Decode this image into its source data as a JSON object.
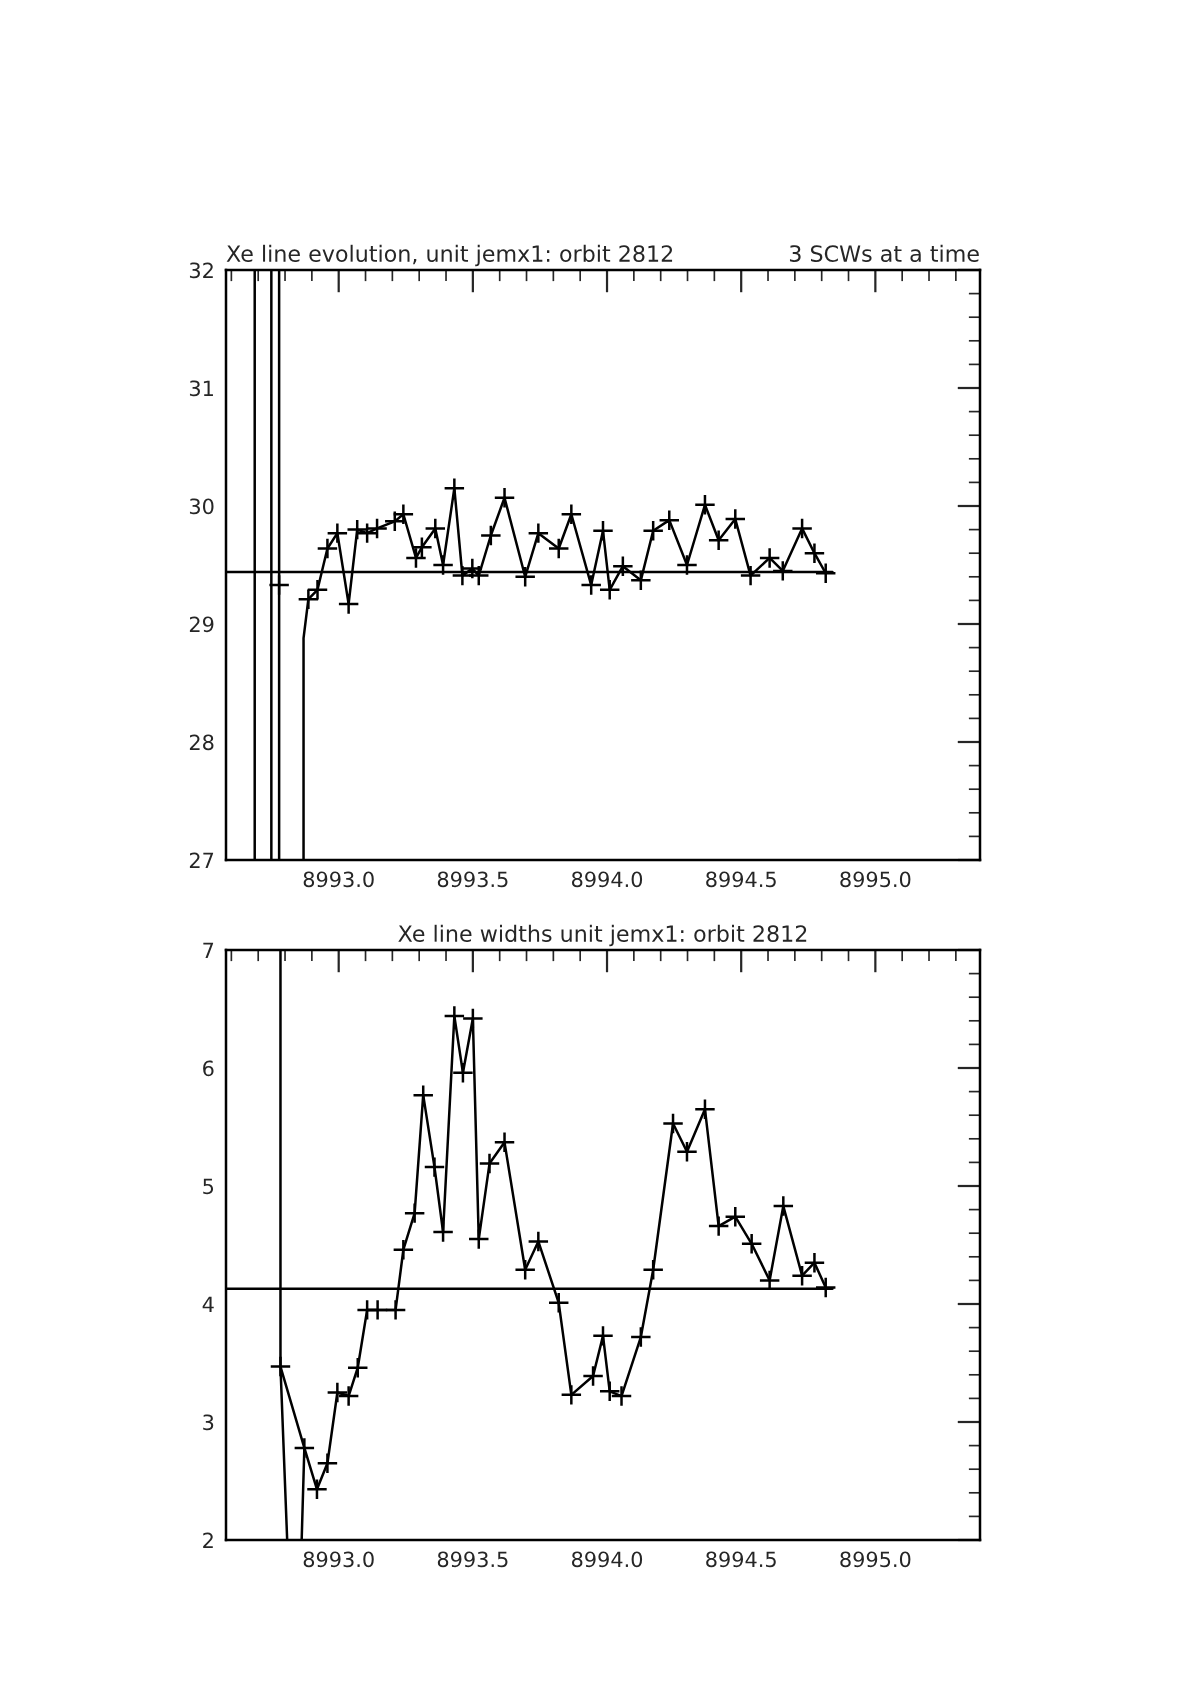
{
  "chart_data": [
    {
      "type": "line",
      "title": "Xe line evolution, unit jemx1: orbit 2812",
      "subtitle": "3 SCWs at a time",
      "xlim": [
        8992.58,
        8995.39
      ],
      "ylim": [
        27,
        32
      ],
      "xticks": [
        {
          "value": 8993,
          "label": "8993.0"
        },
        {
          "value": 8993.5,
          "label": "8993.5"
        },
        {
          "value": 8994,
          "label": "8994.0"
        },
        {
          "value": 8994.5,
          "label": "8994.5"
        },
        {
          "value": 8995,
          "label": "8995.0"
        }
      ],
      "yticks": [
        27,
        28,
        29,
        30,
        31,
        32
      ],
      "grid": false,
      "legend": false,
      "series": [
        {
          "color": "#000000",
          "marker": "cross",
          "x": [
            8992.778,
            8992.869,
            8992.887,
            8992.921,
            8992.958,
            8992.995,
            8993.037,
            8993.069,
            8993.106,
            8993.143,
            8993.209,
            8993.241,
            8993.288,
            8993.31,
            8993.36,
            8993.389,
            8993.431,
            8993.461,
            8993.498,
            8993.522,
            8993.567,
            8993.618,
            8993.695,
            8993.744,
            8993.82,
            8993.867,
            8993.941,
            8993.985,
            8994.01,
            8994.059,
            8994.126,
            8994.172,
            8994.232,
            8994.298,
            8994.365,
            8994.416,
            8994.478,
            8994.535,
            8994.606,
            8994.655,
            8994.727,
            8994.773,
            8994.815
          ],
          "values": [
            29.33,
            null,
            29.21,
            29.29,
            29.64,
            29.77,
            29.17,
            29.8,
            29.77,
            29.81,
            29.87,
            29.93,
            29.56,
            29.65,
            29.81,
            29.5,
            30.15,
            29.41,
            29.47,
            29.41,
            29.75,
            30.07,
            29.4,
            29.77,
            29.64,
            29.93,
            29.33,
            29.79,
            29.29,
            29.49,
            29.37,
            29.79,
            29.88,
            29.5,
            30.01,
            29.71,
            29.89,
            29.41,
            29.56,
            29.45,
            29.81,
            29.6,
            29.43
          ]
        },
        {
          "color": "#000000",
          "marker": "none",
          "x": [
            8992.869,
            8992.869,
            8992.887
          ],
          "values": [
            27,
            28.88,
            29.21
          ]
        },
        {
          "color": "#000000",
          "marker": "none",
          "x": [
            8992.687,
            8992.687
          ],
          "values": [
            27,
            32
          ]
        },
        {
          "color": "#000000",
          "marker": "none",
          "x": [
            8992.749,
            8992.749
          ],
          "values": [
            27,
            32
          ]
        },
        {
          "color": "#000000",
          "marker": "none",
          "x": [
            8992.778,
            8992.778
          ],
          "values": [
            27,
            32
          ]
        },
        {
          "color": "#000000",
          "marker": "none",
          "x": [
            8992.58,
            8994.84
          ],
          "values": [
            29.44,
            29.44
          ]
        }
      ]
    },
    {
      "type": "line",
      "title": "Xe line widths unit jemx1: orbit 2812",
      "xlim": [
        8992.58,
        8995.39
      ],
      "ylim": [
        2,
        7
      ],
      "xticks": [
        {
          "value": 8993,
          "label": "8993.0"
        },
        {
          "value": 8993.5,
          "label": "8993.5"
        },
        {
          "value": 8994,
          "label": "8994.0"
        },
        {
          "value": 8994.5,
          "label": "8994.5"
        },
        {
          "value": 8995,
          "label": "8995.0"
        }
      ],
      "yticks": [
        2,
        3,
        4,
        5,
        6,
        7
      ],
      "grid": false,
      "legend": false,
      "series": [
        {
          "color": "#000000",
          "marker": "cross",
          "x": [
            8992.783,
            8992.872,
            8992.919,
            8992.958,
            8992.995,
            8993.037,
            8993.071,
            8993.106,
            8993.145,
            8993.212,
            8993.241,
            8993.283,
            8993.315,
            8993.357,
            8993.389,
            8993.431,
            8993.463,
            8993.5,
            8993.522,
            8993.562,
            8993.618,
            8993.695,
            8993.744,
            8993.82,
            8993.867,
            8993.948,
            8993.985,
            8994.01,
            8994.054,
            8994.126,
            8994.172,
            8994.246,
            8994.298,
            8994.365,
            8994.416,
            8994.478,
            8994.539,
            8994.606,
            8994.657,
            8994.727,
            8994.773,
            8994.815
          ],
          "values": [
            3.47,
            2.78,
            2.43,
            2.65,
            3.25,
            3.22,
            3.46,
            3.95,
            3.95,
            3.95,
            4.46,
            4.77,
            5.77,
            5.16,
            4.61,
            6.44,
            5.96,
            6.42,
            4.55,
            5.19,
            5.37,
            4.29,
            4.53,
            4.01,
            3.23,
            3.39,
            3.73,
            3.26,
            3.22,
            3.72,
            4.29,
            5.53,
            5.29,
            5.65,
            4.66,
            4.74,
            4.51,
            4.2,
            4.83,
            4.24,
            4.35,
            4.14
          ]
        },
        {
          "color": "#000000",
          "marker": "none",
          "x": [
            8992.783,
            8992.783,
            8992.808
          ],
          "values": [
            7,
            3.47,
            2
          ]
        },
        {
          "color": "#000000",
          "marker": "none",
          "x": [
            8992.862,
            8992.872
          ],
          "values": [
            2,
            2.78
          ]
        },
        {
          "color": "#000000",
          "marker": "none",
          "x": [
            8992.58,
            8994.84
          ],
          "values": [
            4.13,
            4.13
          ]
        }
      ]
    }
  ]
}
